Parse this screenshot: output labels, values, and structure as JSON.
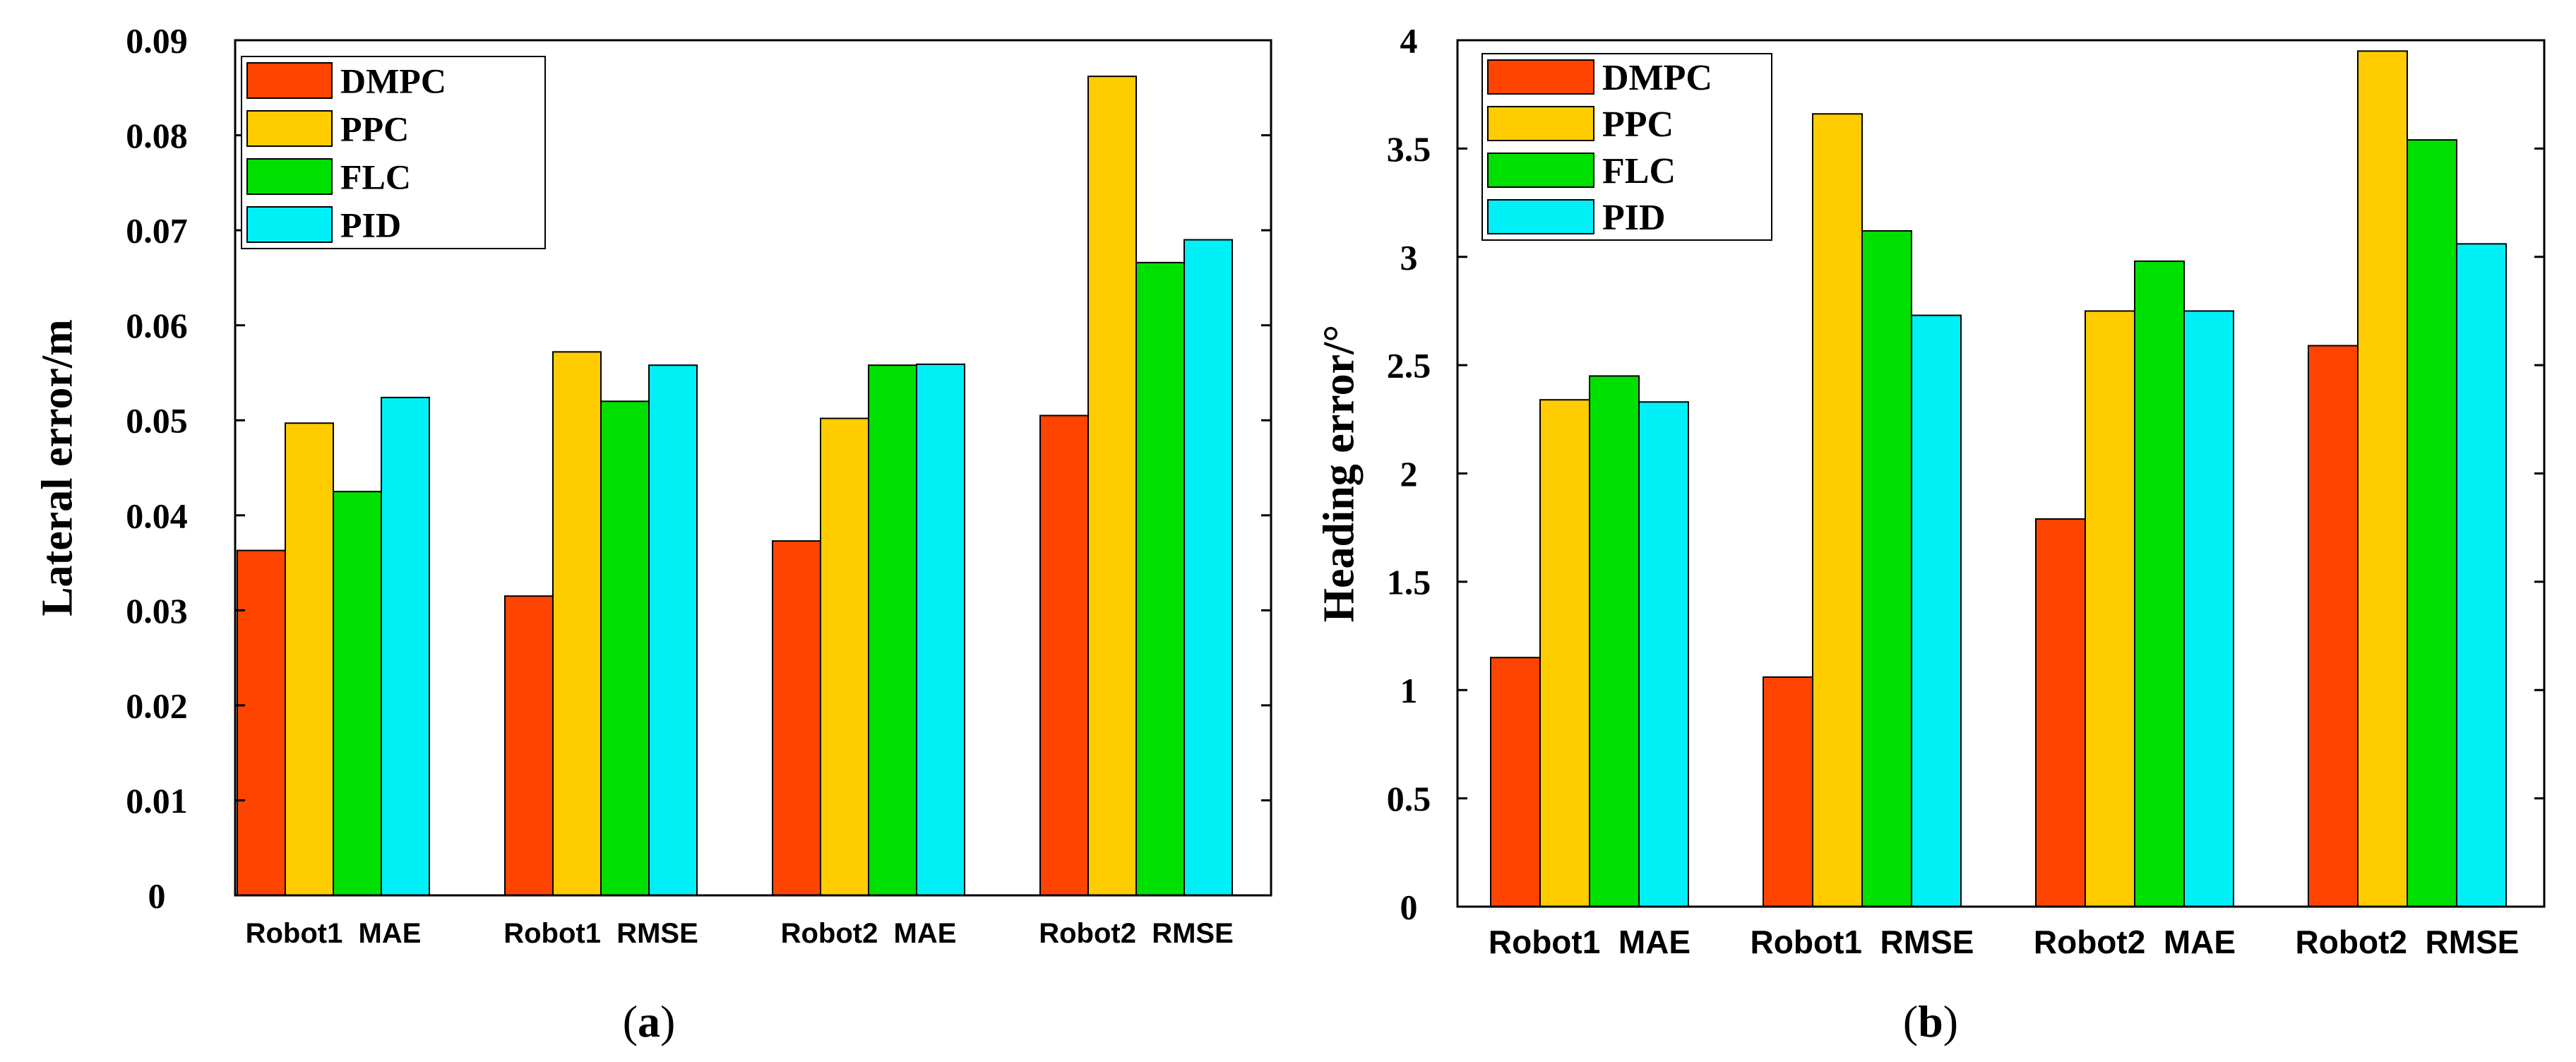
{
  "series_colors": {
    "DMPC": "#FF4400",
    "PPC": "#FFCC00",
    "FLC": "#00E000",
    "PID": "#00F0F8"
  },
  "chart_data": [
    {
      "type": "bar",
      "caption_letter": "a",
      "ylabel": "Lateral error/m",
      "xlabel": "",
      "ylim": [
        0,
        0.09
      ],
      "yticks": [
        0,
        0.01,
        0.02,
        0.03,
        0.04,
        0.05,
        0.06,
        0.07,
        0.08,
        0.09
      ],
      "ytick_labels": [
        "0",
        "0.01",
        "0.02",
        "0.03",
        "0.04",
        "0.05",
        "0.06",
        "0.07",
        "0.08",
        "0.09"
      ],
      "categories": [
        "Robot1  MAE",
        "Robot1  RMSE",
        "Robot2  MAE",
        "Robot2  RMSE"
      ],
      "legend_position": "top-left",
      "series": [
        {
          "name": "DMPC",
          "values": [
            0.0363,
            0.0315,
            0.0373,
            0.0505
          ]
        },
        {
          "name": "PPC",
          "values": [
            0.0497,
            0.0572,
            0.0502,
            0.0862
          ]
        },
        {
          "name": "FLC",
          "values": [
            0.0425,
            0.052,
            0.0558,
            0.0666
          ]
        },
        {
          "name": "PID",
          "values": [
            0.0524,
            0.0558,
            0.0559,
            0.069
          ]
        }
      ]
    },
    {
      "type": "bar",
      "caption_letter": "b",
      "ylabel": "Heading error/°",
      "xlabel": "",
      "ylim": [
        0,
        4
      ],
      "yticks": [
        0,
        0.5,
        1,
        1.5,
        2,
        2.5,
        3,
        3.5,
        4
      ],
      "ytick_labels": [
        "0",
        "0.5",
        "1",
        "1.5",
        "2",
        "2.5",
        "3",
        "3.5",
        "4"
      ],
      "categories": [
        "Robot1  MAE",
        "Robot1  RMSE",
        "Robot2  MAE",
        "Robot2  RMSE"
      ],
      "legend_position": "top-left",
      "series": [
        {
          "name": "DMPC",
          "values": [
            1.15,
            1.06,
            1.79,
            2.59
          ]
        },
        {
          "name": "PPC",
          "values": [
            2.34,
            3.66,
            2.75,
            3.95
          ]
        },
        {
          "name": "FLC",
          "values": [
            2.45,
            3.12,
            2.98,
            3.54
          ]
        },
        {
          "name": "PID",
          "values": [
            2.33,
            2.73,
            2.75,
            3.06
          ]
        }
      ]
    }
  ]
}
